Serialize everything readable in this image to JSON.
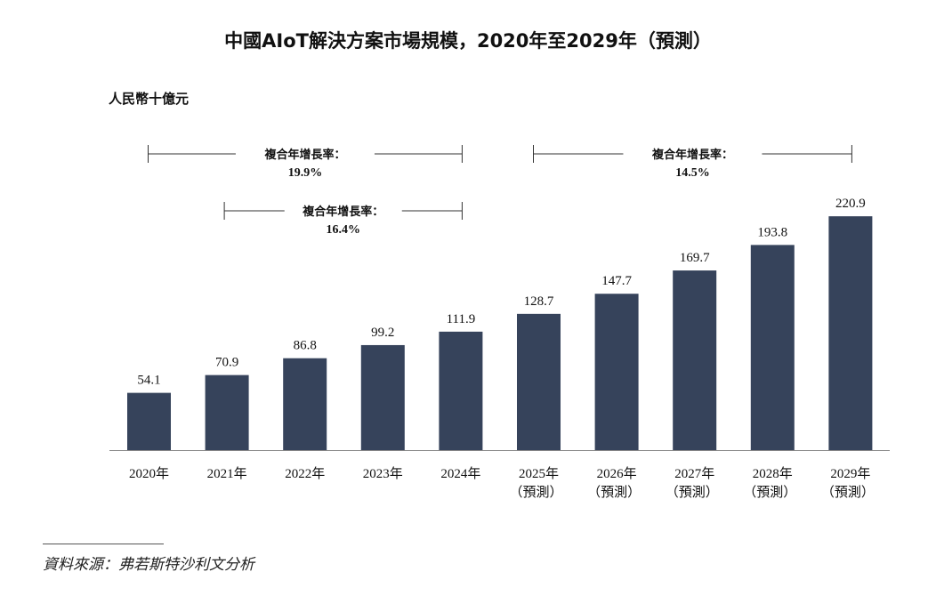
{
  "chart_data": {
    "type": "bar",
    "title": "中國AIoT解決方案市場規模，2020年至2029年（預測）",
    "ylabel": "人民幣十億元",
    "xlabel": "",
    "categories": [
      "2020年",
      "2021年",
      "2022年",
      "2023年",
      "2024年",
      "2025年",
      "2026年",
      "2027年",
      "2028年",
      "2029年"
    ],
    "category_sublabels": [
      "",
      "",
      "",
      "",
      "",
      "（預測）",
      "（預測）",
      "（預測）",
      "（預測）",
      "（預測）"
    ],
    "values": [
      54.1,
      70.9,
      86.8,
      99.2,
      111.9,
      128.7,
      147.7,
      169.7,
      193.8,
      220.9
    ],
    "value_labels": [
      "54.1",
      "70.9",
      "86.8",
      "99.2",
      "111.9",
      "128.7",
      "147.7",
      "169.7",
      "193.8",
      "220.9"
    ],
    "ylim": [
      0,
      230
    ],
    "grid": false,
    "bar_color": "#36435b",
    "annotations": [
      {
        "label": "複合年增長率：",
        "value": "19.9%",
        "from": "2020年",
        "to": "2024年"
      },
      {
        "label": "複合年增長率：",
        "value": "16.4%",
        "from": "2021年",
        "to": "2024年"
      },
      {
        "label": "複合年增長率：",
        "value": "14.5%",
        "from": "2025年",
        "to": "2029年"
      }
    ],
    "source": "資料來源：弗若斯特沙利文分析"
  }
}
